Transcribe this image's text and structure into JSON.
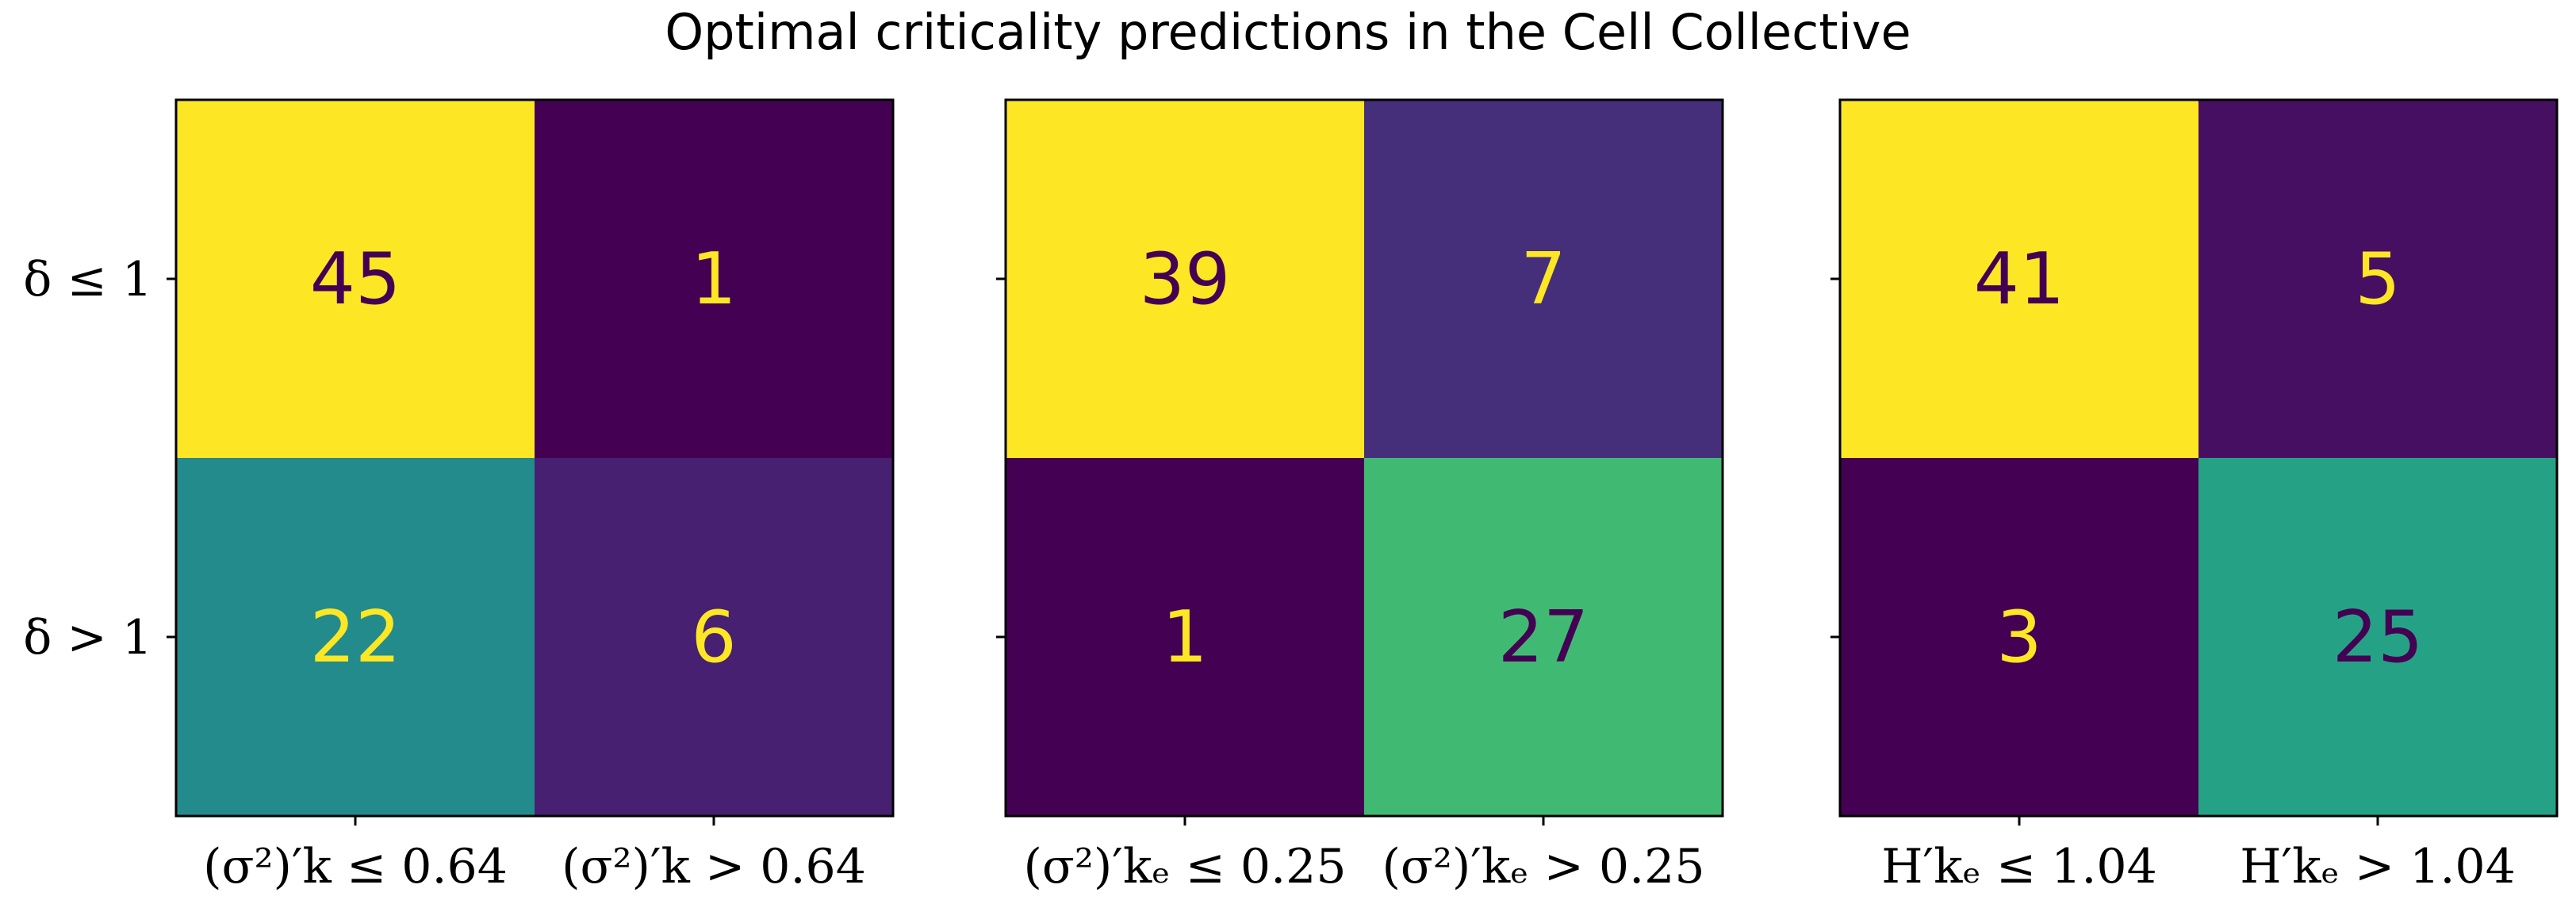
{
  "chart_data": {
    "type": "heatmap",
    "title": "Optimal criticality predictions in the Cell Collective",
    "row_labels": [
      "δ ≤ 1",
      "δ > 1"
    ],
    "colormap": "viridis",
    "panels": [
      {
        "col_labels": [
          "(σ²)′k ≤ 0.64",
          "(σ²)′k > 0.64"
        ],
        "values": [
          [
            45,
            1
          ],
          [
            22,
            6
          ]
        ]
      },
      {
        "col_labels": [
          "(σ²)′kₑ ≤ 0.25",
          "(σ²)′kₑ > 0.25"
        ],
        "values": [
          [
            39,
            7
          ],
          [
            1,
            27
          ]
        ]
      },
      {
        "col_labels": [
          "H′kₑ ≤ 1.04",
          "H′kₑ > 1.04"
        ],
        "values": [
          [
            41,
            5
          ],
          [
            3,
            25
          ]
        ]
      }
    ]
  }
}
